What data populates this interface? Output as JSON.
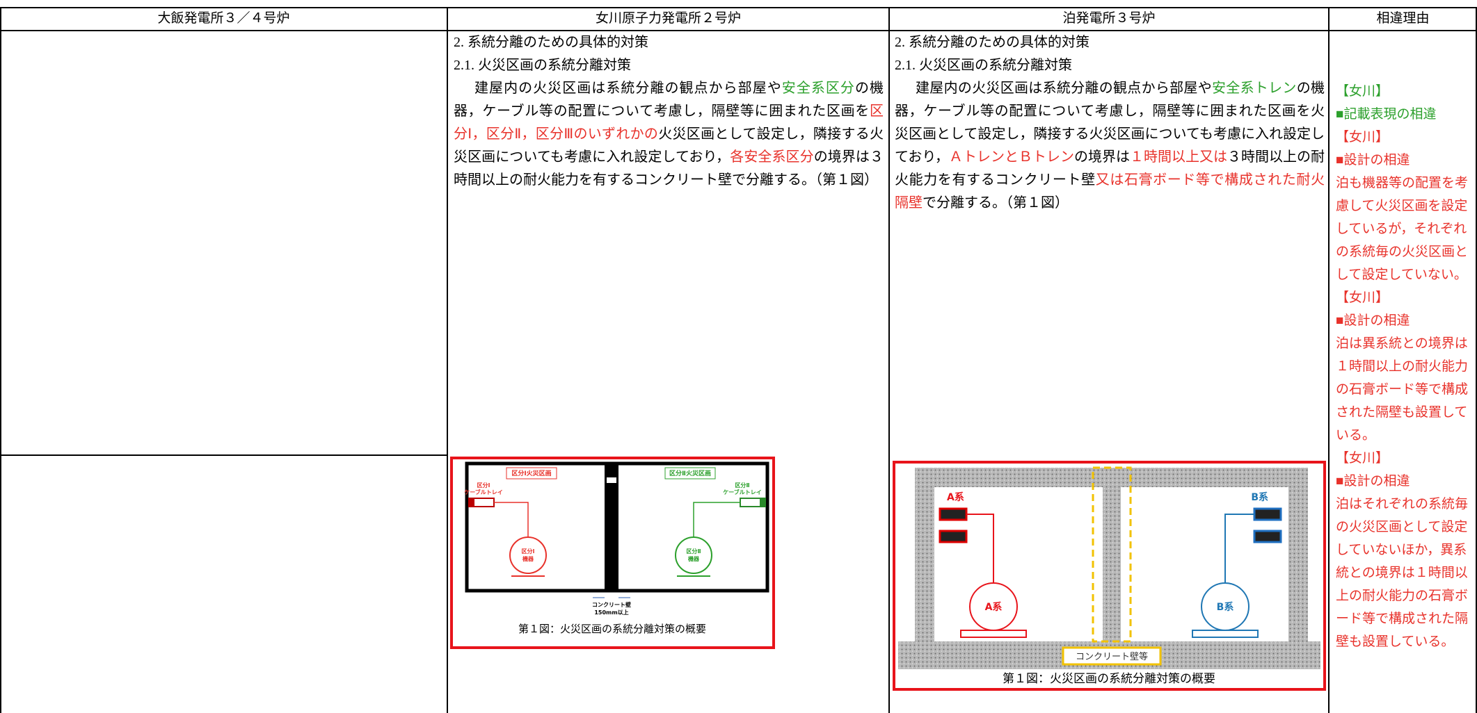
{
  "header": {
    "columns": [
      "大飯発電所３／４号炉",
      "女川原子力発電所２号炉",
      "泊発電所３号炉",
      "相違理由"
    ]
  },
  "onagawa": {
    "heading1": "2. 系統分離のための具体的対策",
    "heading2": "2.1. 火災区画の系統分離対策",
    "body": [
      {
        "text": "建屋内の火災区画は系統分離の観点から部屋や",
        "color": "#000000"
      },
      {
        "text": "安全系区分",
        "color": "#2ca02c"
      },
      {
        "text": "の機器，ケーブル等の配置について考慮し，隔壁等に囲まれた区画を",
        "color": "#000000"
      },
      {
        "text": "区分Ⅰ，区分Ⅱ，区分Ⅲのいずれかの",
        "color": "#e8322b"
      },
      {
        "text": "火災区画として設定し，隣接する火災区画についても考慮に入れ設定しており，",
        "color": "#000000"
      },
      {
        "text": "各安全系区分",
        "color": "#e8322b"
      },
      {
        "text": "の境界は３ 時間以上の耐火能力を有するコンクリート壁で分離する。（第１図）",
        "color": "#000000"
      }
    ],
    "figure": {
      "area_left": "区分Ⅰ火災区画",
      "area_right": "区分Ⅱ火災区画",
      "tray_left": [
        "区分Ⅰ",
        "ケーブルトレイ"
      ],
      "tray_right": [
        "区分Ⅱ",
        "ケーブルトレイ"
      ],
      "equip_left": [
        "区分Ⅰ",
        "機器"
      ],
      "equip_right": [
        "区分Ⅱ",
        "機器"
      ],
      "wall": [
        "コンクリート壁",
        "150mm以上"
      ],
      "caption": "第１図：火災区画の系統分離対策の概要"
    }
  },
  "tomari": {
    "heading1": "2. 系統分離のための具体的対策",
    "heading2": "2.1. 火災区画の系統分離対策",
    "body": [
      {
        "text": "建屋内の火災区画は系統分離の観点から部屋や",
        "color": "#000000"
      },
      {
        "text": "安全系トレン",
        "color": "#2ca02c"
      },
      {
        "text": "の機器，ケーブル等の配置について考慮し，隔壁等に囲まれた区画を火災区画として設定し，隣接する火災区画についても考慮に入れ設定しており，",
        "color": "#000000"
      },
      {
        "text": "ＡトレンとＢトレン",
        "color": "#e8322b"
      },
      {
        "text": "の境界は",
        "color": "#000000"
      },
      {
        "text": "１時間以上又は",
        "color": "#e8322b"
      },
      {
        "text": "３時間以上の耐火能力を有するコンクリート壁",
        "color": "#000000"
      },
      {
        "text": "又は石膏ボード等で構成された耐火隔壁",
        "color": "#e8322b"
      },
      {
        "text": "で分離する。（第１図）",
        "color": "#000000"
      }
    ],
    "figure": {
      "tray_left": "A系",
      "tray_right": "B系",
      "equip_left": "A系",
      "equip_right": "B系",
      "wall": "コンクリート壁等",
      "caption": "第１図：火災区画の系統分離対策の概要"
    }
  },
  "reasons": [
    {
      "text": "【女川】",
      "color": "#2ca02c"
    },
    {
      "text": "■記載表現の相違",
      "color": "#2ca02c"
    },
    {
      "text": "【女川】",
      "color": "#e8322b"
    },
    {
      "text": "■設計の相違",
      "color": "#e8322b"
    },
    {
      "text": "泊も機器等の配置を考慮して火災区画を設定しているが，それぞれの系統毎の火災区画として設定していない。",
      "color": "#e8322b"
    },
    {
      "text": "【女川】",
      "color": "#e8322b"
    },
    {
      "text": "■設計の相違",
      "color": "#e8322b"
    },
    {
      "text": "泊は異系統との境界は１時間以上の耐火能力の石膏ボード等で構成された隔壁も設置している。",
      "color": "#e8322b"
    },
    {
      "text": "【女川】",
      "color": "#e8322b"
    },
    {
      "text": "■設計の相違",
      "color": "#e8322b"
    },
    {
      "text": "泊はそれぞれの系統毎の火災区画として設定していないほか，異系統との境界は１時間以上の耐火能力の石膏ボード等で構成された隔壁も設置している。",
      "color": "#e8322b"
    }
  ]
}
